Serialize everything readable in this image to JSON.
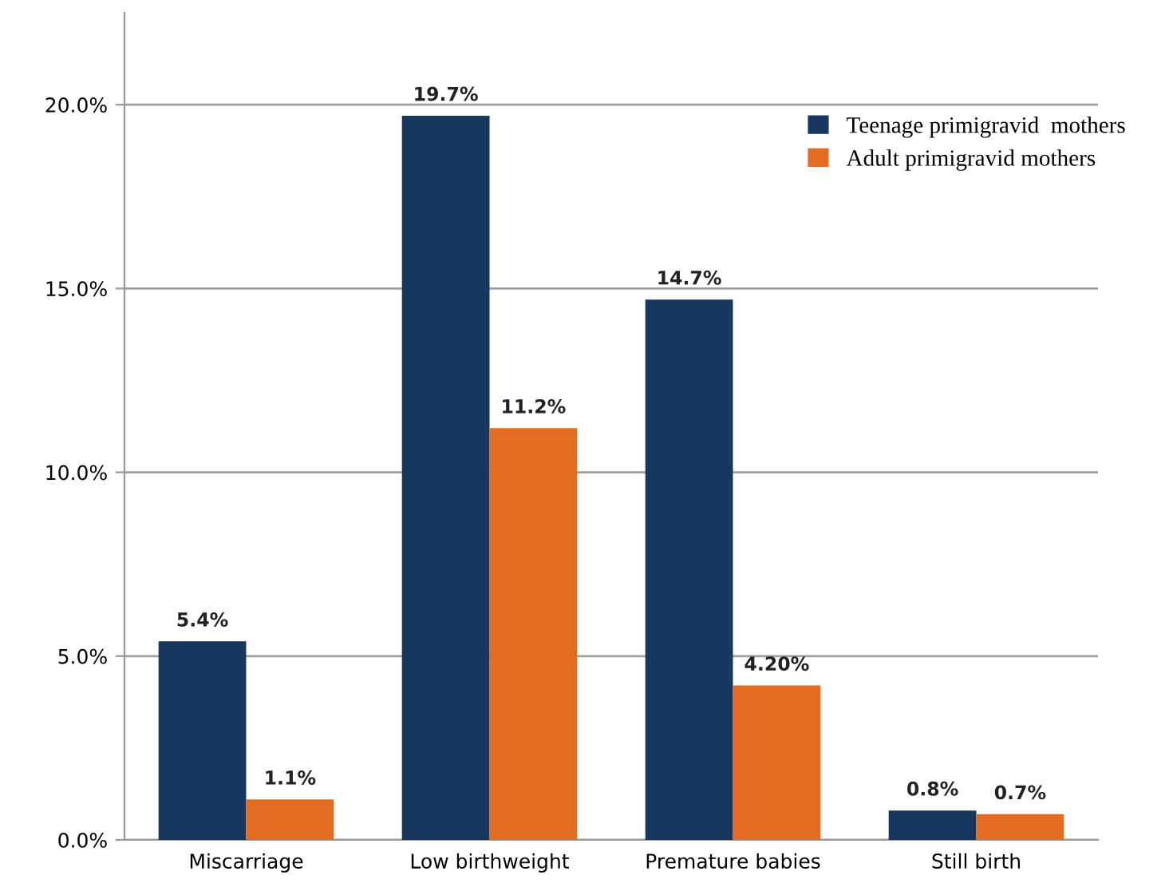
{
  "chart_data": {
    "type": "bar",
    "categories": [
      "Miscarriage",
      "Low birthweight",
      "Premature babies",
      "Still birth"
    ],
    "series": [
      {
        "name": "Teenage primigravid  mothers",
        "color": "#17375e",
        "values": [
          5.4,
          19.7,
          14.7,
          0.8
        ],
        "value_labels": [
          "5.4%",
          "19.7%",
          "14.7%",
          "0.8%"
        ]
      },
      {
        "name": "Adult primigravid mothers",
        "color": "#e46c22",
        "values": [
          1.1,
          11.2,
          4.2,
          0.7
        ],
        "value_labels": [
          "1.1%",
          "11.2%",
          "4.20%",
          "0.7%"
        ]
      }
    ],
    "ylim": [
      0,
      22.5
    ],
    "yticks": [
      {
        "value": 0,
        "label": "0.0%"
      },
      {
        "value": 5,
        "label": "5.0%"
      },
      {
        "value": 10,
        "label": "10.0%"
      },
      {
        "value": 15,
        "label": "15.0%"
      },
      {
        "value": 20,
        "label": "20.0%"
      }
    ],
    "grid": "y",
    "legend": "top right"
  }
}
